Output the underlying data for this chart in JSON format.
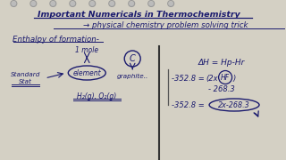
{
  "paper_color": "#d4d0c4",
  "ink_color": "#1a1a6e",
  "ink_dark": "#111144",
  "hole_color": "#aaaaaa",
  "title1": "Important Numericals in Thermochemistry",
  "title2": "→ physical chemistry problem solving trick",
  "section_title": "Enthalpy of formation-",
  "label_1mole": "1 mole",
  "label_element": "element",
  "label_standard": "Standard\nStat",
  "label_C": "C",
  "label_graphite": "graphite..",
  "label_H2": "H₂(g), O₂(g)",
  "eq1": "ΔH = Hp-Hr",
  "eq2_left": "-352.8 =",
  "eq2_mid": "(2x",
  "eq2_HF": "HF",
  "eq2_right": ")",
  "eq2b": "- 268.3",
  "eq3_left": "-352.8 =",
  "eq3_oval": "2x-268.3"
}
